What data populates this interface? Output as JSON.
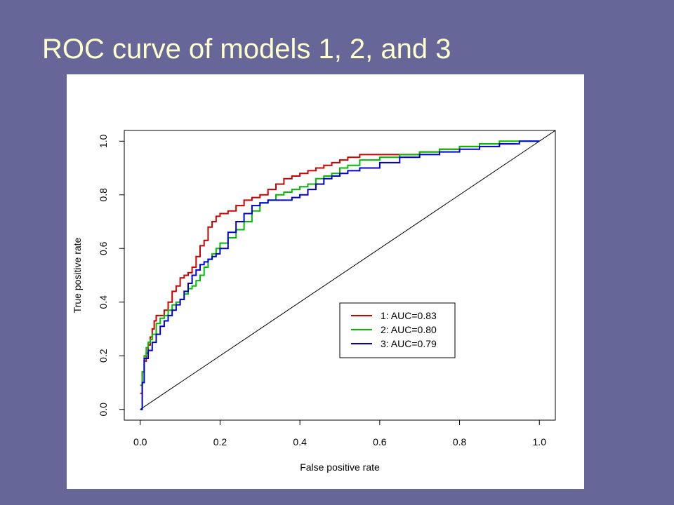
{
  "slide": {
    "title": "ROC curve of models 1, 2, and 3",
    "title_color": "#ffffcc",
    "background_color": "#666699"
  },
  "chart_data": {
    "type": "line",
    "title": "",
    "xlabel": "False positive rate",
    "ylabel": "True positive rate",
    "xlim": [
      -0.04,
      1.04
    ],
    "ylim": [
      -0.04,
      1.04
    ],
    "xticks": [
      "0.0",
      "0.2",
      "0.4",
      "0.6",
      "0.8",
      "1.0"
    ],
    "yticks": [
      "0.0",
      "0.2",
      "0.4",
      "0.6",
      "0.8",
      "1.0"
    ],
    "grid": false,
    "legend_position": "bottom-right",
    "reference_line": {
      "from": [
        0,
        0
      ],
      "to": [
        1.04,
        1.04
      ],
      "color": "#000000"
    },
    "series": [
      {
        "name": "1: AUC=0.83",
        "color": "#cc0000",
        "x": [
          0,
          0.005,
          0.01,
          0.015,
          0.02,
          0.025,
          0.03,
          0.035,
          0.04,
          0.045,
          0.06,
          0.07,
          0.08,
          0.09,
          0.1,
          0.11,
          0.12,
          0.13,
          0.14,
          0.15,
          0.16,
          0.17,
          0.18,
          0.19,
          0.2,
          0.22,
          0.24,
          0.26,
          0.28,
          0.3,
          0.32,
          0.34,
          0.36,
          0.38,
          0.4,
          0.42,
          0.44,
          0.46,
          0.48,
          0.5,
          0.52,
          0.55,
          0.6,
          0.65,
          0.7,
          0.75,
          0.8,
          0.85,
          0.9,
          0.94
        ],
        "y": [
          0.06,
          0.14,
          0.18,
          0.21,
          0.24,
          0.27,
          0.3,
          0.33,
          0.35,
          0.35,
          0.37,
          0.4,
          0.44,
          0.46,
          0.49,
          0.5,
          0.51,
          0.53,
          0.57,
          0.61,
          0.63,
          0.68,
          0.7,
          0.72,
          0.73,
          0.74,
          0.76,
          0.78,
          0.79,
          0.8,
          0.82,
          0.84,
          0.86,
          0.87,
          0.88,
          0.89,
          0.9,
          0.91,
          0.92,
          0.93,
          0.94,
          0.95,
          0.95,
          0.95,
          0.96,
          0.97,
          0.98,
          0.99,
          0.99,
          0.99
        ]
      },
      {
        "name": "2: AUC=0.80",
        "color": "#00bb00",
        "x": [
          0,
          0.005,
          0.01,
          0.015,
          0.02,
          0.025,
          0.03,
          0.04,
          0.05,
          0.06,
          0.07,
          0.08,
          0.09,
          0.1,
          0.11,
          0.12,
          0.13,
          0.14,
          0.15,
          0.16,
          0.17,
          0.18,
          0.19,
          0.2,
          0.22,
          0.24,
          0.26,
          0.28,
          0.3,
          0.32,
          0.34,
          0.36,
          0.38,
          0.4,
          0.42,
          0.44,
          0.46,
          0.48,
          0.5,
          0.52,
          0.55,
          0.6,
          0.65,
          0.7,
          0.75,
          0.8,
          0.85,
          0.9,
          0.95,
          1.0
        ],
        "y": [
          0.09,
          0.14,
          0.2,
          0.23,
          0.25,
          0.26,
          0.28,
          0.32,
          0.34,
          0.35,
          0.37,
          0.39,
          0.4,
          0.41,
          0.43,
          0.45,
          0.46,
          0.48,
          0.5,
          0.53,
          0.56,
          0.58,
          0.6,
          0.62,
          0.64,
          0.67,
          0.7,
          0.74,
          0.77,
          0.78,
          0.8,
          0.81,
          0.82,
          0.83,
          0.84,
          0.86,
          0.87,
          0.88,
          0.9,
          0.91,
          0.93,
          0.94,
          0.95,
          0.96,
          0.97,
          0.98,
          0.99,
          1.0,
          1.0,
          1.0
        ]
      },
      {
        "name": "3: AUC=0.79",
        "color": "#0000cc",
        "x": [
          0,
          0.005,
          0.01,
          0.02,
          0.03,
          0.04,
          0.05,
          0.06,
          0.07,
          0.08,
          0.09,
          0.1,
          0.11,
          0.12,
          0.13,
          0.14,
          0.15,
          0.16,
          0.17,
          0.18,
          0.19,
          0.2,
          0.22,
          0.24,
          0.26,
          0.28,
          0.3,
          0.32,
          0.34,
          0.36,
          0.38,
          0.4,
          0.42,
          0.44,
          0.46,
          0.48,
          0.5,
          0.52,
          0.55,
          0.6,
          0.65,
          0.7,
          0.75,
          0.8,
          0.85,
          0.9,
          0.95,
          1.0
        ],
        "y": [
          0.0,
          0.1,
          0.19,
          0.22,
          0.25,
          0.28,
          0.31,
          0.33,
          0.35,
          0.37,
          0.39,
          0.41,
          0.44,
          0.47,
          0.5,
          0.52,
          0.54,
          0.55,
          0.56,
          0.57,
          0.58,
          0.6,
          0.66,
          0.7,
          0.73,
          0.76,
          0.77,
          0.78,
          0.78,
          0.78,
          0.79,
          0.8,
          0.82,
          0.84,
          0.86,
          0.87,
          0.88,
          0.89,
          0.9,
          0.92,
          0.94,
          0.95,
          0.96,
          0.97,
          0.98,
          0.99,
          1.0,
          1.0
        ]
      }
    ]
  }
}
